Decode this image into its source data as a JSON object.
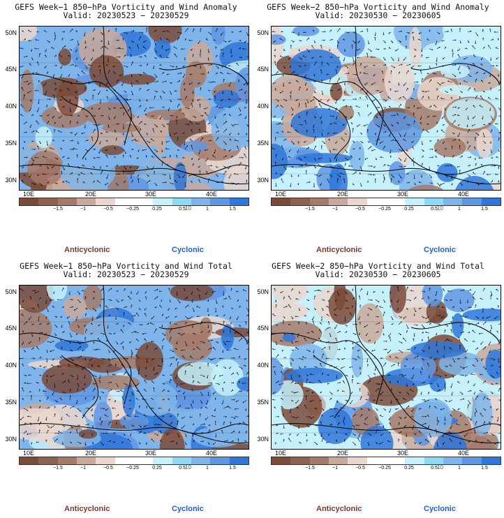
{
  "panels": [
    {
      "title1": "GEFS Week−1 850−hPa Vorticity and Wind Anomaly",
      "title2": "Valid: 20230523 − 20230529",
      "seed": 11
    },
    {
      "title1": "GEFS Week−2 850−hPa Vorticity and Wind Anomaly",
      "title2": "Valid: 20230530 − 20230605",
      "seed": 23
    },
    {
      "title1": "GEFS Week−1 850−hPa Vorticity and Wind Total",
      "title2": "Valid: 20230523 − 20230529",
      "seed": 37
    },
    {
      "title1": "GEFS Week−2 850−hPa Vorticity and Wind Total",
      "title2": "Valid: 20230530 − 20230605",
      "seed": 51
    }
  ],
  "y_axis_labels": [
    "50N",
    "45N",
    "40N",
    "35N",
    "30N"
  ],
  "x_axis_labels": [
    "10E",
    "20E",
    "30E",
    "40E"
  ],
  "colorbar": {
    "ticks": [
      "−1.5",
      "−1",
      "−0.5",
      "−0.25",
      "0.25",
      "0.5",
      "1",
      "1.5"
    ],
    "scale_label": "10",
    "colors": [
      "#7a4b3a",
      "#8f6150",
      "#a57a6a",
      "#c9a99b",
      "#ead7cf",
      "#ffffff",
      "#ffffff",
      "#c6f1fb",
      "#8fd9f4",
      "#7fb5ea",
      "#5f97e3",
      "#2f77d8"
    ]
  },
  "legend": {
    "anticyclonic": "Anticyclonic",
    "cyclonic": "Cyclonic"
  }
}
